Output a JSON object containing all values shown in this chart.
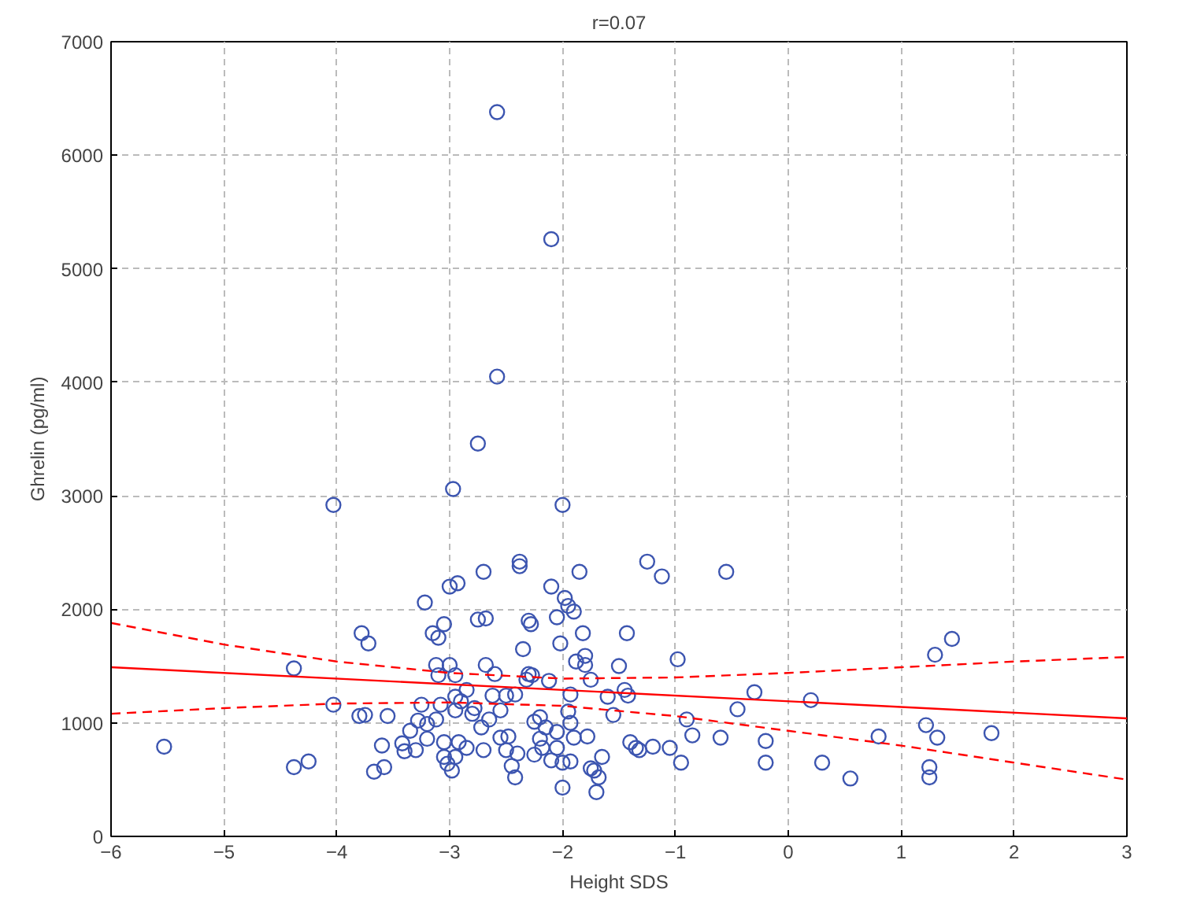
{
  "chart_data": {
    "type": "scatter",
    "title": "r=0.07",
    "xlabel": "Height SDS",
    "ylabel": "Ghrelin (pg/ml)",
    "xlim": [
      -6,
      3
    ],
    "ylim": [
      0,
      7000
    ],
    "xticks": [
      -6,
      -5,
      -4,
      -3,
      -2,
      -1,
      0,
      1,
      2,
      3
    ],
    "yticks": [
      0,
      1000,
      2000,
      3000,
      4000,
      5000,
      6000,
      7000
    ],
    "grid": true,
    "series": [
      {
        "marker": "circle",
        "color": "#3c55b0",
        "x": [
          -5.53,
          -4.38,
          -4.38,
          -4.25,
          -4.03,
          -4.03,
          -3.78,
          -3.72,
          -3.8,
          -3.75,
          -3.55,
          -3.6,
          -3.58,
          -3.67,
          -3.4,
          -3.42,
          -3.3,
          -3.25,
          -3.22,
          -3.15,
          -3.12,
          -3.1,
          -3.1,
          -3.05,
          -3.0,
          -3.0,
          -3.12,
          -3.08,
          -3.2,
          -3.2,
          -3.05,
          -3.02,
          -3.05,
          -2.97,
          -2.93,
          -2.95,
          -2.95,
          -2.9,
          -2.95,
          -2.92,
          -2.95,
          -2.98,
          -2.85,
          -2.78,
          -2.75,
          -2.75,
          -2.7,
          -2.68,
          -2.68,
          -2.65,
          -2.7,
          -2.62,
          -2.6,
          -2.58,
          -2.58,
          -2.55,
          -2.55,
          -2.5,
          -2.45,
          -2.42,
          -2.42,
          -2.38,
          -2.38,
          -2.35,
          -2.3,
          -2.28,
          -2.3,
          -2.27,
          -2.25,
          -2.2,
          -2.2,
          -2.25,
          -2.15,
          -2.1,
          -2.1,
          -2.05,
          -2.0,
          -1.98,
          -1.95,
          -1.9,
          -2.02,
          -1.93,
          -1.95,
          -1.93,
          -1.9,
          -2.0,
          -1.93,
          -2.0,
          -2.05,
          -1.85,
          -1.82,
          -1.8,
          -1.78,
          -1.75,
          -1.72,
          -1.7,
          -1.68,
          -1.65,
          -1.6,
          -1.55,
          -1.5,
          -1.45,
          -1.43,
          -1.42,
          -1.35,
          -1.4,
          -1.32,
          -1.25,
          -1.2,
          -1.12,
          -1.05,
          -0.98,
          -0.95,
          -0.9,
          -0.85,
          -0.6,
          -0.55,
          -0.45,
          -0.3,
          -0.2,
          -0.2,
          0.2,
          0.3,
          0.55,
          0.8,
          1.22,
          1.25,
          1.25,
          1.3,
          1.32,
          1.45,
          1.8,
          -2.85,
          -2.8,
          -2.72,
          -2.5,
          -2.48,
          -2.4,
          -2.32,
          -2.18,
          -2.12,
          -2.05,
          -1.88,
          -1.8,
          -1.75,
          -2.1,
          -3.28,
          -3.35
        ],
        "values": [
          790,
          1480,
          610,
          660,
          2920,
          1160,
          1790,
          1700,
          1060,
          1070,
          1060,
          800,
          610,
          570,
          750,
          820,
          760,
          1160,
          2060,
          1790,
          1510,
          1420,
          1750,
          1870,
          2200,
          1510,
          1030,
          1160,
          990,
          860,
          700,
          640,
          830,
          3060,
          2230,
          1420,
          1230,
          1190,
          1110,
          830,
          700,
          580,
          780,
          1130,
          3460,
          1910,
          2330,
          1920,
          1510,
          1030,
          760,
          1240,
          1430,
          6380,
          4050,
          1110,
          870,
          760,
          620,
          520,
          1250,
          2420,
          2380,
          1650,
          1900,
          1870,
          1430,
          1420,
          1010,
          1050,
          860,
          720,
          960,
          5260,
          2200,
          1930,
          2920,
          2100,
          2030,
          1980,
          1700,
          1250,
          1100,
          1000,
          870,
          650,
          660,
          430,
          780,
          2330,
          1790,
          1510,
          880,
          600,
          580,
          390,
          520,
          700,
          1230,
          1070,
          1500,
          1290,
          1790,
          1240,
          780,
          830,
          760,
          2420,
          790,
          2290,
          780,
          1560,
          650,
          1030,
          890,
          870,
          2330,
          1120,
          1270,
          840,
          650,
          1200,
          650,
          510,
          880,
          980,
          610,
          520,
          1600,
          870,
          1740,
          910,
          1290,
          1080,
          960,
          1240,
          880,
          730,
          1380,
          780,
          1370,
          920,
          1540,
          1590,
          1380,
          670,
          1020,
          930
        ]
      },
      {
        "type": "line",
        "color": "#ff0000",
        "line_style": "solid",
        "x": [
          -6,
          3
        ],
        "values": [
          1490,
          1040
        ]
      },
      {
        "type": "line",
        "color": "#ff0000",
        "line_style": "dashed",
        "x": [
          -6,
          -5,
          -4,
          -3,
          -2,
          -1,
          0,
          1,
          2,
          3
        ],
        "values": [
          1880,
          1690,
          1540,
          1440,
          1390,
          1400,
          1440,
          1490,
          1540,
          1580
        ]
      },
      {
        "type": "line",
        "color": "#ff0000",
        "line_style": "dashed",
        "x": [
          -6,
          -5,
          -4,
          -3,
          -2,
          -1,
          0,
          1,
          2,
          3
        ],
        "values": [
          1080,
          1130,
          1170,
          1180,
          1150,
          1060,
          930,
          800,
          650,
          500
        ]
      }
    ]
  }
}
